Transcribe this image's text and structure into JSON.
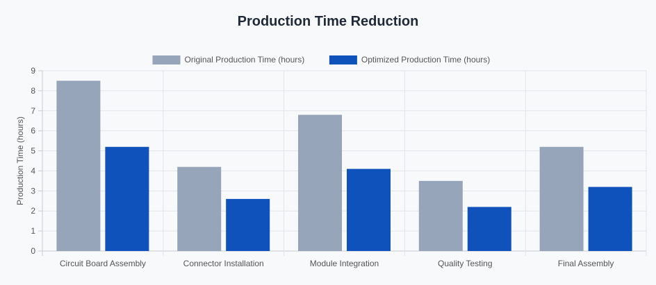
{
  "colors": {
    "original": "#97a5ba",
    "optimized": "#1052bb",
    "grid": "#e2e4e8",
    "axis": "#c8ccd2"
  },
  "chart_data": {
    "type": "bar",
    "title": "Production Time Reduction",
    "xlabel": "",
    "ylabel": "Production Time (hours)",
    "ylim": [
      0,
      9
    ],
    "yticks": [
      0,
      1,
      2,
      3,
      4,
      5,
      6,
      7,
      8,
      9
    ],
    "grid": true,
    "legend_position": "top-center",
    "categories": [
      "Circuit Board Assembly",
      "Connector Installation",
      "Module Integration",
      "Quality Testing",
      "Final Assembly"
    ],
    "series": [
      {
        "name": "Original Production Time (hours)",
        "values": [
          8.5,
          4.2,
          6.8,
          3.5,
          5.2
        ]
      },
      {
        "name": "Optimized Production Time (hours)",
        "values": [
          5.2,
          2.6,
          4.1,
          2.2,
          3.2
        ]
      }
    ]
  }
}
